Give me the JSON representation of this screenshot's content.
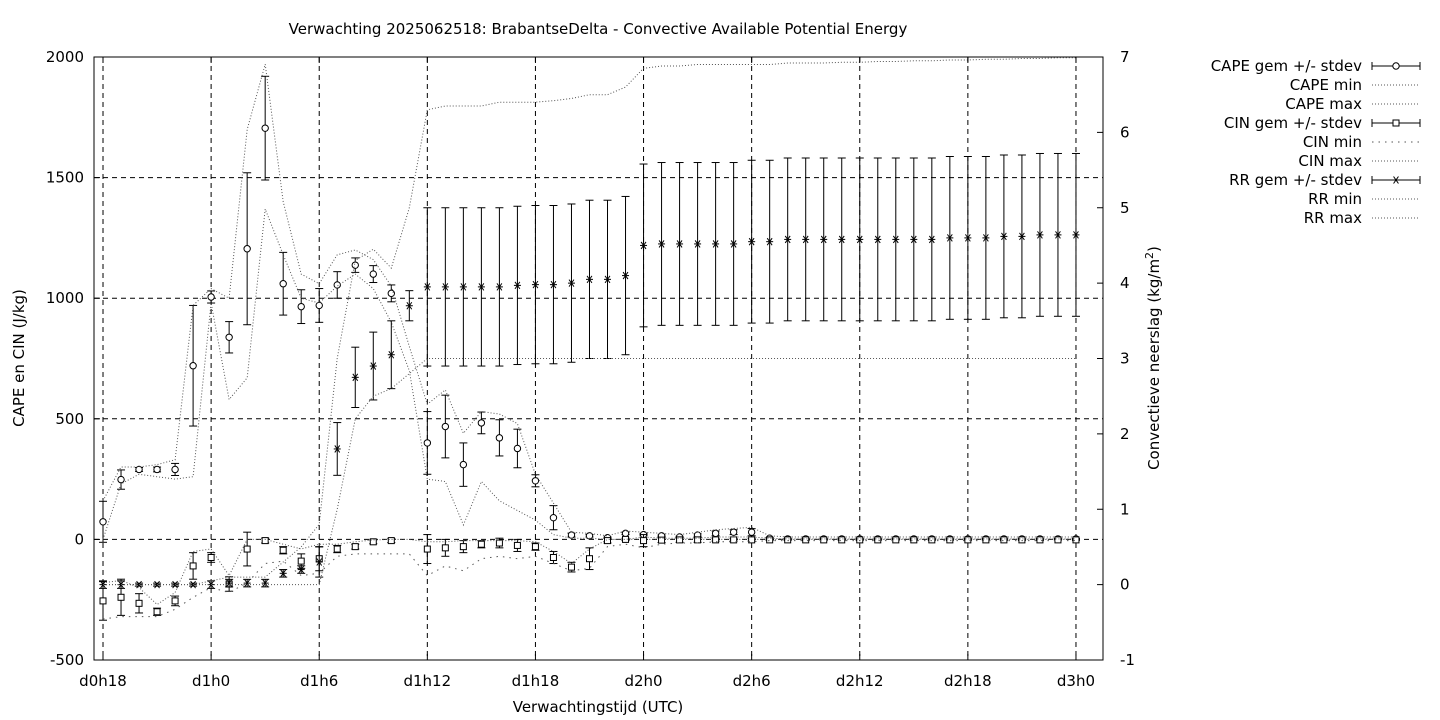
{
  "chart_data": {
    "type": "line",
    "title": "Verwachting 2025062518: BrabantseDelta - Convective Available Potential Energy",
    "xlabel": "Verwachtingstijd (UTC)",
    "ylabel": "CAPE en CIN (J/kg)",
    "y2label_main": "Convectieve neerslag (kg/m",
    "y2label_sup": "2",
    "y2label_end": ")",
    "x_unit": "hours since d0h18",
    "xlim": [
      -0.5,
      55.5
    ],
    "ylim": [
      -500,
      2000
    ],
    "y2lim": [
      -1,
      7
    ],
    "grid": true,
    "legend_position": "outside-right",
    "x_ticks": [
      {
        "x": 0,
        "label": "d0h18"
      },
      {
        "x": 6,
        "label": "d1h0"
      },
      {
        "x": 12,
        "label": "d1h6"
      },
      {
        "x": 18,
        "label": "d1h12"
      },
      {
        "x": 24,
        "label": "d1h18"
      },
      {
        "x": 30,
        "label": "d2h0"
      },
      {
        "x": 36,
        "label": "d2h6"
      },
      {
        "x": 42,
        "label": "d2h12"
      },
      {
        "x": 48,
        "label": "d2h18"
      },
      {
        "x": 54,
        "label": "d3h0"
      }
    ],
    "y_ticks": [
      "-500",
      "0",
      "500",
      "1000",
      "1500",
      "2000"
    ],
    "y2_ticks": [
      "-1",
      "0",
      "1",
      "2",
      "3",
      "4",
      "5",
      "6",
      "7"
    ],
    "legend": [
      {
        "label": "CAPE gem +/- stdev",
        "style": "errorbar",
        "marker": "circle"
      },
      {
        "label": "CAPE min",
        "style": "dotted"
      },
      {
        "label": "CAPE max",
        "style": "dotted"
      },
      {
        "label": "CIN gem +/- stdev",
        "style": "errorbar",
        "marker": "square"
      },
      {
        "label": "CIN min",
        "style": "dotted-sparse"
      },
      {
        "label": "CIN max",
        "style": "dotted"
      },
      {
        "label": "RR gem +/- stdev",
        "style": "errorbar",
        "marker": "star"
      },
      {
        "label": "RR min",
        "style": "dotted"
      },
      {
        "label": "RR max",
        "style": "dotted"
      }
    ],
    "series": [
      {
        "name": "CAPE gem +/- stdev",
        "axis": "y",
        "x": [
          0,
          1,
          2,
          3,
          4,
          5,
          6,
          7,
          8,
          9,
          10,
          11,
          12,
          13,
          14,
          15,
          16,
          17,
          18,
          19,
          20,
          21,
          22,
          23,
          24,
          25,
          26,
          27,
          28,
          29,
          30,
          31,
          32,
          33,
          34,
          35,
          36,
          37,
          38,
          39,
          40,
          41,
          42,
          43,
          44,
          45,
          46,
          47,
          48,
          49,
          50,
          51,
          52,
          53,
          54
        ],
        "mean": [
          73,
          248,
          290,
          290,
          290,
          720,
          1005,
          838,
          1205,
          1705,
          1060,
          965,
          970,
          1055,
          1137,
          1100,
          1020,
          null,
          400,
          468,
          310,
          483,
          421,
          377,
          243,
          90,
          18,
          15,
          7,
          25,
          20,
          15,
          10,
          18,
          25,
          30,
          30,
          5,
          2,
          2,
          2,
          2,
          2,
          2,
          2,
          2,
          2,
          2,
          2,
          2,
          2,
          2,
          2,
          2,
          2
        ],
        "stdev": [
          85,
          40,
          8,
          10,
          25,
          250,
          25,
          65,
          315,
          215,
          130,
          70,
          70,
          55,
          30,
          35,
          35,
          null,
          130,
          130,
          90,
          45,
          75,
          80,
          25,
          50,
          8,
          5,
          3,
          5,
          5,
          3,
          3,
          5,
          10,
          10,
          15,
          3,
          2,
          2,
          2,
          2,
          2,
          2,
          2,
          2,
          2,
          2,
          2,
          2,
          2,
          2,
          2,
          2,
          2
        ]
      },
      {
        "name": "CAPE min",
        "axis": "y",
        "x": [
          0,
          1,
          2,
          3,
          4,
          5,
          6,
          7,
          8,
          9,
          10,
          11,
          12,
          13,
          14,
          15,
          16,
          17,
          18,
          19,
          20,
          21,
          22,
          23,
          24,
          25,
          26,
          27,
          28,
          29,
          30,
          31,
          32,
          33,
          34,
          35,
          36,
          37,
          38,
          39,
          40,
          41,
          42,
          43,
          44,
          45,
          46,
          47,
          48,
          49,
          50,
          51,
          52,
          53,
          54
        ],
        "values": [
          0,
          230,
          270,
          260,
          250,
          260,
          980,
          580,
          670,
          1370,
          1180,
          1000,
          980,
          1050,
          1100,
          1040,
          900,
          700,
          250,
          240,
          60,
          240,
          160,
          120,
          80,
          20,
          5,
          5,
          0,
          0,
          0,
          0,
          0,
          0,
          0,
          0,
          0,
          0,
          0,
          0,
          0,
          0,
          0,
          0,
          0,
          0,
          0,
          0,
          0,
          0,
          0,
          0,
          0,
          0,
          0
        ]
      },
      {
        "name": "CAPE max",
        "axis": "y",
        "x": [
          0,
          1,
          2,
          3,
          4,
          5,
          6,
          7,
          8,
          9,
          10,
          11,
          12,
          13,
          14,
          15,
          16,
          17,
          18,
          19,
          20,
          21,
          22,
          23,
          24,
          25,
          26,
          27,
          28,
          29,
          30,
          31,
          32,
          33,
          34,
          35,
          36,
          37,
          38,
          39,
          40,
          41,
          42,
          43,
          44,
          45,
          46,
          47,
          48,
          49,
          50,
          51,
          52,
          53,
          54
        ],
        "values": [
          160,
          300,
          300,
          310,
          330,
          970,
          1040,
          1000,
          1700,
          1970,
          1400,
          1100,
          1060,
          1180,
          1200,
          1160,
          1050,
          800,
          560,
          620,
          440,
          530,
          520,
          480,
          270,
          150,
          30,
          25,
          15,
          35,
          30,
          25,
          20,
          30,
          40,
          45,
          50,
          15,
          10,
          10,
          10,
          10,
          10,
          10,
          10,
          10,
          10,
          10,
          10,
          10,
          10,
          10,
          10,
          10,
          10
        ]
      },
      {
        "name": "CIN gem +/- stdev",
        "axis": "y",
        "x": [
          0,
          1,
          2,
          3,
          4,
          5,
          6,
          7,
          8,
          9,
          10,
          11,
          12,
          13,
          14,
          15,
          16,
          17,
          18,
          19,
          20,
          21,
          22,
          23,
          24,
          25,
          26,
          27,
          28,
          29,
          30,
          31,
          32,
          33,
          34,
          35,
          36,
          37,
          38,
          39,
          40,
          41,
          42,
          43,
          44,
          45,
          46,
          47,
          48,
          49,
          50,
          51,
          52,
          53,
          54
        ],
        "mean": [
          -255,
          -240,
          -265,
          -300,
          -255,
          -110,
          -75,
          -185,
          -40,
          -5,
          -45,
          -90,
          -80,
          -40,
          -30,
          -10,
          -5,
          null,
          -40,
          -35,
          -30,
          -20,
          -15,
          -25,
          -30,
          -75,
          -115,
          -80,
          -5,
          0,
          -5,
          -3,
          -2,
          -2,
          -2,
          -2,
          -2,
          -2,
          -2,
          -2,
          -2,
          -2,
          -2,
          -2,
          -2,
          -2,
          -2,
          -2,
          -2,
          -2,
          -2,
          -2,
          -2,
          -2,
          -2
        ],
        "stdev": [
          80,
          75,
          40,
          15,
          20,
          55,
          20,
          30,
          70,
          10,
          15,
          30,
          50,
          15,
          10,
          8,
          8,
          null,
          60,
          35,
          25,
          15,
          20,
          25,
          15,
          25,
          20,
          45,
          10,
          5,
          25,
          10,
          10,
          10,
          5,
          5,
          5,
          2,
          2,
          2,
          2,
          2,
          2,
          2,
          2,
          2,
          2,
          2,
          2,
          2,
          2,
          2,
          2,
          2,
          2
        ]
      },
      {
        "name": "CIN min",
        "axis": "y",
        "x": [
          0,
          1,
          2,
          3,
          4,
          5,
          6,
          7,
          8,
          9,
          10,
          11,
          12,
          13,
          14,
          15,
          16,
          17,
          18,
          19,
          20,
          21,
          22,
          23,
          24,
          25,
          26,
          27,
          28,
          29,
          30,
          31,
          32,
          33,
          34,
          35,
          36,
          37,
          38,
          39,
          40,
          41,
          42,
          43,
          44,
          45,
          46,
          47,
          48,
          49,
          50,
          51,
          52,
          53,
          54
        ],
        "values": [
          -330,
          -320,
          -320,
          -320,
          -290,
          -240,
          -200,
          -220,
          -180,
          -100,
          -90,
          -150,
          -140,
          -70,
          -60,
          -60,
          -60,
          -60,
          -150,
          -110,
          -130,
          -80,
          -70,
          -80,
          -70,
          -100,
          -130,
          -120,
          -30,
          -20,
          -35,
          -20,
          -15,
          -15,
          -10,
          -10,
          -10,
          -5,
          -5,
          -5,
          -5,
          -5,
          -5,
          -5,
          -5,
          -5,
          -5,
          -5,
          -5,
          -5,
          -5,
          -5,
          -5,
          -5,
          -5
        ]
      },
      {
        "name": "CIN max",
        "axis": "y",
        "x": [
          0,
          1,
          2,
          3,
          4,
          5,
          6,
          7,
          8,
          9,
          10,
          11,
          12,
          13,
          14,
          15,
          16,
          17,
          18,
          19,
          20,
          21,
          22,
          23,
          24,
          25,
          26,
          27,
          28,
          29,
          30,
          31,
          32,
          33,
          34,
          35,
          36,
          37,
          38,
          39,
          40,
          41,
          42,
          43,
          44,
          45,
          46,
          47,
          48,
          49,
          50,
          51,
          52,
          53,
          54
        ],
        "values": [
          -180,
          -170,
          -200,
          -270,
          -220,
          -50,
          -40,
          -150,
          0,
          0,
          -20,
          -40,
          -20,
          -20,
          -10,
          -2,
          0,
          0,
          -10,
          -10,
          -5,
          -5,
          -5,
          -5,
          -10,
          -50,
          -100,
          -40,
          0,
          0,
          10,
          5,
          5,
          5,
          10,
          10,
          10,
          5,
          2,
          2,
          2,
          2,
          2,
          2,
          2,
          2,
          2,
          2,
          2,
          2,
          2,
          2,
          2,
          2,
          2
        ]
      },
      {
        "name": "RR gem +/- stdev",
        "axis": "y2",
        "x": [
          0,
          1,
          2,
          3,
          4,
          5,
          6,
          7,
          8,
          9,
          10,
          11,
          12,
          13,
          14,
          15,
          16,
          17,
          18,
          19,
          20,
          21,
          22,
          23,
          24,
          25,
          26,
          27,
          28,
          29,
          30,
          31,
          32,
          33,
          34,
          35,
          36,
          37,
          38,
          39,
          40,
          41,
          42,
          43,
          44,
          45,
          46,
          47,
          48,
          49,
          50,
          51,
          52,
          53,
          54
        ],
        "mean": [
          0,
          0,
          0,
          0,
          0,
          0,
          0,
          0.02,
          0.02,
          0.02,
          0.15,
          0.2,
          0.3,
          1.8,
          2.75,
          2.9,
          3.05,
          3.7,
          3.95,
          3.95,
          3.95,
          3.95,
          3.95,
          3.97,
          3.98,
          3.98,
          4.0,
          4.05,
          4.05,
          4.1,
          4.5,
          4.52,
          4.52,
          4.52,
          4.52,
          4.52,
          4.55,
          4.55,
          4.58,
          4.58,
          4.58,
          4.58,
          4.58,
          4.58,
          4.58,
          4.58,
          4.58,
          4.6,
          4.6,
          4.6,
          4.62,
          4.62,
          4.64,
          4.64,
          4.64
        ],
        "stdev": [
          0.05,
          0.05,
          0.02,
          0.02,
          0.02,
          0.02,
          0.05,
          0.05,
          0.05,
          0.05,
          0.05,
          0.05,
          0.2,
          0.35,
          0.4,
          0.45,
          0.45,
          0.2,
          1.05,
          1.05,
          1.05,
          1.05,
          1.05,
          1.05,
          1.05,
          1.05,
          1.05,
          1.05,
          1.05,
          1.05,
          1.08,
          1.08,
          1.08,
          1.08,
          1.08,
          1.08,
          1.08,
          1.08,
          1.08,
          1.08,
          1.08,
          1.08,
          1.08,
          1.08,
          1.08,
          1.08,
          1.08,
          1.08,
          1.08,
          1.08,
          1.08,
          1.08,
          1.08,
          1.08,
          1.08
        ]
      },
      {
        "name": "RR min",
        "axis": "y2",
        "x": [
          0,
          1,
          2,
          3,
          4,
          5,
          6,
          7,
          8,
          9,
          10,
          11,
          12,
          13,
          14,
          15,
          16,
          17,
          18,
          19,
          20,
          21,
          22,
          23,
          24,
          25,
          26,
          27,
          28,
          29,
          30,
          31,
          32,
          33,
          34,
          35,
          36,
          37,
          38,
          39,
          40,
          41,
          42,
          43,
          44,
          45,
          46,
          47,
          48,
          49,
          50,
          51,
          52,
          53,
          54
        ],
        "values": [
          0,
          0,
          0,
          0,
          0,
          0,
          0,
          0,
          0,
          0,
          0,
          0,
          0,
          1.0,
          2.2,
          2.5,
          2.6,
          2.8,
          3.0,
          3.0,
          3.0,
          3.0,
          3.0,
          3.0,
          3.0,
          3.0,
          3.0,
          3.0,
          3.0,
          3.0,
          3.0,
          3.0,
          3.0,
          3.0,
          3.0,
          3.0,
          3.0,
          3.0,
          3.0,
          3.0,
          3.0,
          3.0,
          3.0,
          3.0,
          3.0,
          3.0,
          3.0,
          3.0,
          3.0,
          3.0,
          3.0,
          3.0,
          3.0,
          3.0,
          3.0
        ]
      },
      {
        "name": "RR max",
        "axis": "y2",
        "x": [
          0,
          1,
          2,
          3,
          4,
          5,
          6,
          7,
          8,
          9,
          10,
          11,
          12,
          13,
          14,
          15,
          16,
          17,
          18,
          19,
          20,
          21,
          22,
          23,
          24,
          25,
          26,
          27,
          28,
          29,
          30,
          31,
          32,
          33,
          34,
          35,
          36,
          37,
          38,
          39,
          40,
          41,
          42,
          43,
          44,
          45,
          46,
          47,
          48,
          49,
          50,
          51,
          52,
          53,
          54
        ],
        "values": [
          0,
          0,
          0,
          0,
          0,
          0,
          0.05,
          0.1,
          0.1,
          0.1,
          0.3,
          0.5,
          0.8,
          3.0,
          4.3,
          4.45,
          4.2,
          5.0,
          6.3,
          6.35,
          6.35,
          6.35,
          6.4,
          6.4,
          6.4,
          6.42,
          6.45,
          6.5,
          6.5,
          6.6,
          6.85,
          6.88,
          6.88,
          6.9,
          6.9,
          6.9,
          6.9,
          6.9,
          6.92,
          6.92,
          6.92,
          6.93,
          6.93,
          6.94,
          6.94,
          6.95,
          6.95,
          6.96,
          6.96,
          6.97,
          6.97,
          6.98,
          6.98,
          6.99,
          6.99
        ]
      }
    ]
  }
}
